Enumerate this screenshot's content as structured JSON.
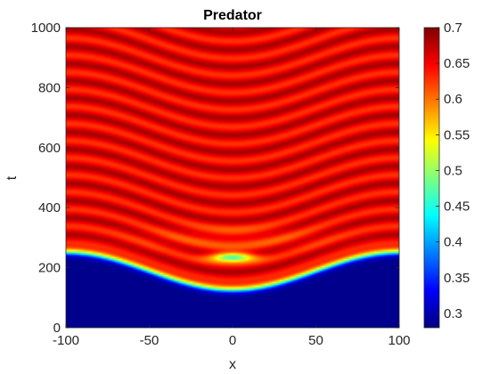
{
  "chart_data": {
    "type": "heatmap",
    "title": "Predator",
    "xlabel": "x",
    "ylabel": "t",
    "xlim": [
      -100,
      100
    ],
    "ylim": [
      0,
      1000
    ],
    "xticks": [
      "-100",
      "-50",
      "0",
      "50",
      "100"
    ],
    "yticks": [
      "0",
      "200",
      "400",
      "600",
      "800",
      "1000"
    ],
    "colormap": "jet",
    "clim": [
      0.28,
      0.7
    ],
    "colorbar_ticks": [
      "0.3",
      "0.35",
      "0.4",
      "0.45",
      "0.5",
      "0.55",
      "0.6",
      "0.65",
      "0.7"
    ],
    "field": {
      "invasion_front_t_at_x_edges": 250,
      "invasion_front_t_at_x0": 125,
      "front_width_t": 12,
      "behind_front_value": 0.285,
      "mean_value_after_front": 0.655,
      "oscillation_amplitude": 0.028,
      "oscillation_period_t": 57,
      "central_peak": {
        "x": 0,
        "t": 235,
        "value": 0.45
      }
    }
  }
}
